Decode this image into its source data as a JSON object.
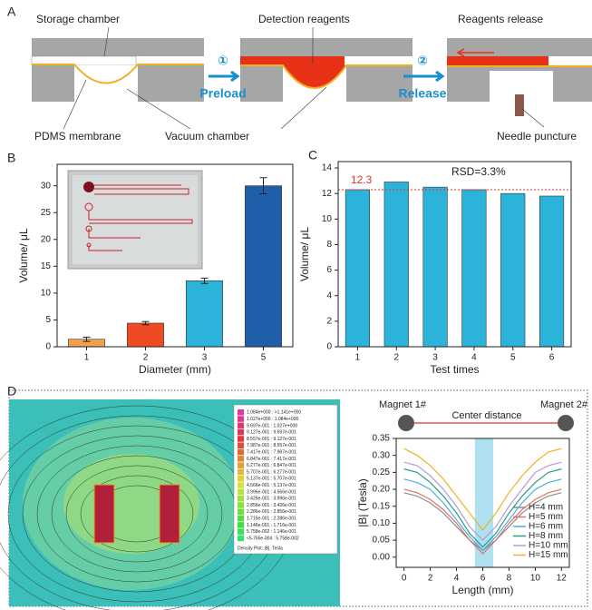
{
  "panel_a": {
    "label": "A",
    "storage_chamber": "Storage chamber",
    "detection_reagents": "Detection reagents",
    "reagents_release": "Reagents release",
    "step1": "①",
    "preload": "Preload",
    "step2": "②",
    "release": "Release",
    "pdms_membrane": "PDMS membrane",
    "vacuum_chamber": "Vacuum chamber",
    "needle_puncture": "Needle puncture"
  },
  "panel_d": {
    "label": "D",
    "magnet1": "Magnet 1#",
    "magnet2": "Magnet 2#",
    "center_distance": "Center distance",
    "colorbar_labels": [
      "1.084e+000 : >1.141e+000",
      "1.027e+000 : 1.084e+000",
      "9.697e-001 : 1.027e+000",
      "9.127e-001 : 9.697e-001",
      "8.557e-001 : 9.127e-001",
      "7.987e-001 : 8.557e-001",
      "7.417e-001 : 7.987e-001",
      "6.847e-001 : 7.417e-001",
      "6.277e-001 : 6.847e-001",
      "5.707e-001 : 6.277e-001",
      "5.137e-001 : 5.707e-001",
      "4.566e-001 : 5.137e-001",
      "3.996e-001 : 4.566e-001",
      "3.426e-001 : 3.996e-001",
      "2.856e-001 : 3.426e-001",
      "2.286e-001 : 2.856e-001",
      "1.716e-001 : 2.286e-001",
      "1.146e-001 : 1.716e-001",
      "5.758e-002 : 1.146e-001",
      "<5.765e-004 : 5.758e-002"
    ],
    "colorbar_title": "Density Plot: |B|, Tesla"
  },
  "chart_data": [
    {
      "type": "bar",
      "panel_label": "B",
      "categories": [
        "1",
        "2",
        "3",
        "5"
      ],
      "values": [
        1.4,
        4.4,
        12.3,
        30.0
      ],
      "errors": [
        0.4,
        0.3,
        0.5,
        1.5
      ],
      "colors": [
        "#f2a04e",
        "#ef4b22",
        "#2bb3d9",
        "#1f5ea8"
      ],
      "xlabel": "Diameter (mm)",
      "ylabel": "Volume/ μL",
      "ylim": [
        0,
        34
      ],
      "yticks": [
        0,
        5,
        10,
        15,
        20,
        25,
        30
      ]
    },
    {
      "type": "bar",
      "panel_label": "C",
      "categories": [
        "1",
        "2",
        "3",
        "4",
        "5",
        "6"
      ],
      "values": [
        12.3,
        12.9,
        12.5,
        12.3,
        12.0,
        11.8
      ],
      "color": "#2bb3d9",
      "mean": 12.3,
      "mean_color": "#e8302a",
      "annotation": "RSD=3.3%",
      "xlabel": "Test times",
      "ylabel": "Volume/ μL",
      "ylim": [
        0,
        14.5
      ],
      "yticks": [
        0,
        2,
        4,
        6,
        8,
        10,
        12,
        14
      ]
    },
    {
      "type": "line",
      "x": [
        0,
        1,
        2,
        3,
        4,
        5,
        6,
        7,
        8,
        9,
        10,
        11,
        12
      ],
      "series": [
        {
          "name": "H=4 mm",
          "color": "#8c8c8c",
          "values": [
            0.19,
            0.18,
            0.16,
            0.13,
            0.09,
            0.05,
            0.02,
            0.05,
            0.09,
            0.13,
            0.16,
            0.18,
            0.19
          ]
        },
        {
          "name": "H=5 mm",
          "color": "#e2706a",
          "values": [
            0.2,
            0.19,
            0.17,
            0.14,
            0.1,
            0.05,
            0.01,
            0.05,
            0.1,
            0.14,
            0.17,
            0.19,
            0.2
          ]
        },
        {
          "name": "H=6 mm",
          "color": "#49aee0",
          "values": [
            0.23,
            0.22,
            0.2,
            0.16,
            0.11,
            0.06,
            0.02,
            0.06,
            0.11,
            0.16,
            0.2,
            0.22,
            0.23
          ]
        },
        {
          "name": "H=8 mm",
          "color": "#2f9a8a",
          "values": [
            0.26,
            0.25,
            0.22,
            0.18,
            0.13,
            0.07,
            0.03,
            0.07,
            0.13,
            0.18,
            0.22,
            0.25,
            0.26
          ]
        },
        {
          "name": "H=10 mm",
          "color": "#b69ad8",
          "values": [
            0.28,
            0.27,
            0.24,
            0.2,
            0.15,
            0.09,
            0.05,
            0.09,
            0.15,
            0.2,
            0.25,
            0.27,
            0.28
          ]
        },
        {
          "name": "H=15 mm",
          "color": "#f0b020",
          "values": [
            0.32,
            0.3,
            0.27,
            0.23,
            0.18,
            0.13,
            0.08,
            0.13,
            0.19,
            0.24,
            0.28,
            0.31,
            0.32
          ]
        }
      ],
      "highlight_x": [
        5.4,
        6.8
      ],
      "highlight_color": "#aee0f0",
      "xlabel": "Length (mm)",
      "ylabel": "|B| (Tesla)",
      "xlim": [
        -0.6,
        12.6
      ],
      "xticks": [
        0,
        2,
        4,
        6,
        8,
        10,
        12
      ],
      "ylim": [
        -0.03,
        0.35
      ],
      "yticks": [
        {
          "value": 0,
          "label": "0.00"
        },
        0.05,
        {
          "value": 0.1,
          "label": "0.10"
        },
        0.15,
        {
          "value": 0.2,
          "label": "0.20"
        },
        0.25,
        {
          "value": 0.3,
          "label": "0.30"
        },
        0.35
      ]
    }
  ]
}
